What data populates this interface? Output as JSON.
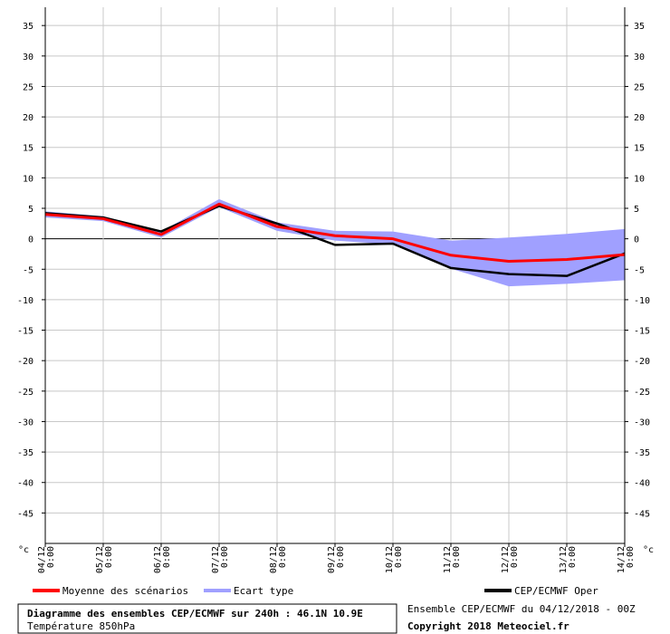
{
  "chart_data": {
    "type": "line",
    "title": "Diagramme des ensembles CEP/ECMWF sur 240h : 46.1N 10.9E",
    "subtitle": "Température 850hPa",
    "run_info": "Ensemble CEP/ECMWF du 04/12/2018 - 00Z",
    "copyright": "Copyright 2018 Meteociel.fr",
    "unit": "°c",
    "ylim": [
      -50,
      38
    ],
    "y_ticks": [
      35,
      30,
      25,
      20,
      15,
      10,
      5,
      0,
      -5,
      -10,
      -15,
      -20,
      -25,
      -30,
      -35,
      -40,
      -45
    ],
    "grid": true,
    "x_dates": [
      "04/12",
      "05/12",
      "06/12",
      "07/12",
      "08/12",
      "09/12",
      "10/12",
      "11/12",
      "12/12",
      "13/12",
      "14/12"
    ],
    "x_times": [
      "0:00",
      "0:00",
      "0:00",
      "0:00",
      "0:00",
      "0:00",
      "0:00",
      "0:00",
      "0:00",
      "0:00",
      "0:00"
    ],
    "series": [
      {
        "name": "Moyenne des scénarios",
        "color": "#ff0000",
        "values": [
          4.0,
          3.3,
          0.7,
          5.7,
          2.0,
          0.5,
          0.0,
          -2.7,
          -3.7,
          -3.4,
          -2.6
        ]
      },
      {
        "name": "Ecart type",
        "color": "#a0a0ff",
        "upper": [
          4.5,
          3.7,
          1.2,
          6.5,
          2.7,
          1.3,
          1.2,
          -0.3,
          0.2,
          0.8,
          1.6
        ],
        "lower": [
          3.5,
          2.9,
          0.2,
          5.2,
          1.3,
          -0.3,
          -0.9,
          -4.9,
          -7.8,
          -7.4,
          -6.8
        ]
      },
      {
        "name": "CEP/ECMWF Oper",
        "color": "#000000",
        "values": [
          4.2,
          3.5,
          1.2,
          5.4,
          2.5,
          -1.0,
          -0.8,
          -4.8,
          -5.8,
          -6.1,
          -2.4
        ]
      }
    ]
  }
}
